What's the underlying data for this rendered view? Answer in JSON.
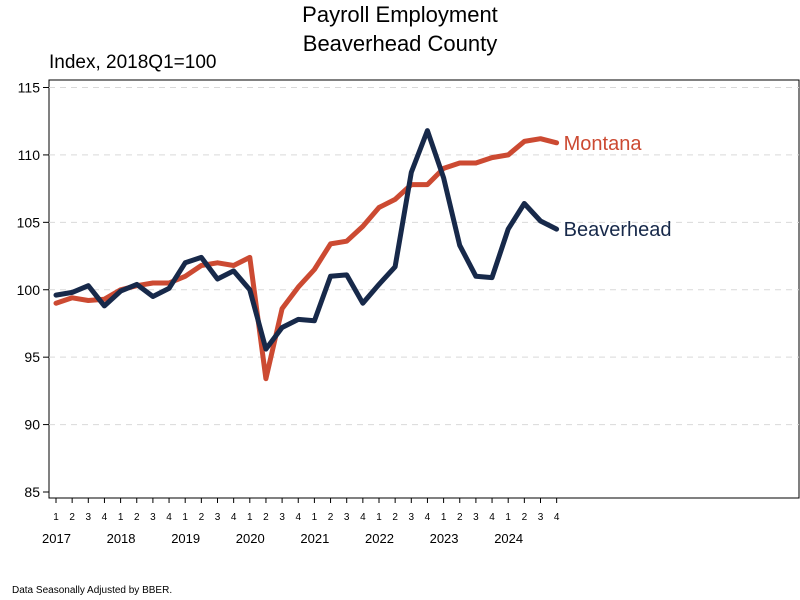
{
  "chart_data": {
    "type": "line",
    "title": "Payroll Employment",
    "subtitle": "Beaverhead County",
    "ylabel": "Index, 2018Q1=100",
    "ylim": [
      85,
      115
    ],
    "yticks": [
      85,
      90,
      95,
      100,
      105,
      110,
      115
    ],
    "grid": "horizontal dashed",
    "quarters": [
      "1",
      "2",
      "3",
      "4",
      "1",
      "2",
      "3",
      "4",
      "1",
      "2",
      "3",
      "4",
      "1",
      "2",
      "3",
      "4",
      "1",
      "2",
      "3",
      "4",
      "1",
      "2",
      "3",
      "4",
      "1",
      "2",
      "3",
      "4",
      "1",
      "2",
      "3",
      "4"
    ],
    "years": [
      "2017",
      "2018",
      "2019",
      "2020",
      "2021",
      "2022",
      "2023",
      "2024"
    ],
    "series": [
      {
        "name": "Montana",
        "color": "#cc4a32",
        "values": [
          99.0,
          99.4,
          99.2,
          99.3,
          100.0,
          100.3,
          100.5,
          100.5,
          101.0,
          101.8,
          102.0,
          101.8,
          102.4,
          93.4,
          98.6,
          100.2,
          101.5,
          103.4,
          103.6,
          104.7,
          106.1,
          106.7,
          107.8,
          107.8,
          109.0,
          109.4,
          109.4,
          109.8,
          110.0,
          111.0,
          111.2,
          110.9
        ]
      },
      {
        "name": "Beaverhead",
        "color": "#17294a",
        "values": [
          99.6,
          99.8,
          100.3,
          98.8,
          99.9,
          100.4,
          99.5,
          100.1,
          102.0,
          102.4,
          100.8,
          101.4,
          100.0,
          95.6,
          97.2,
          97.8,
          97.7,
          101.0,
          101.1,
          99.0,
          100.4,
          101.7,
          108.7,
          111.8,
          108.3,
          103.3,
          101.0,
          100.9,
          104.5,
          106.4,
          105.1,
          104.5
        ]
      }
    ]
  },
  "footnote": "Data Seasonally Adjusted by BBER."
}
